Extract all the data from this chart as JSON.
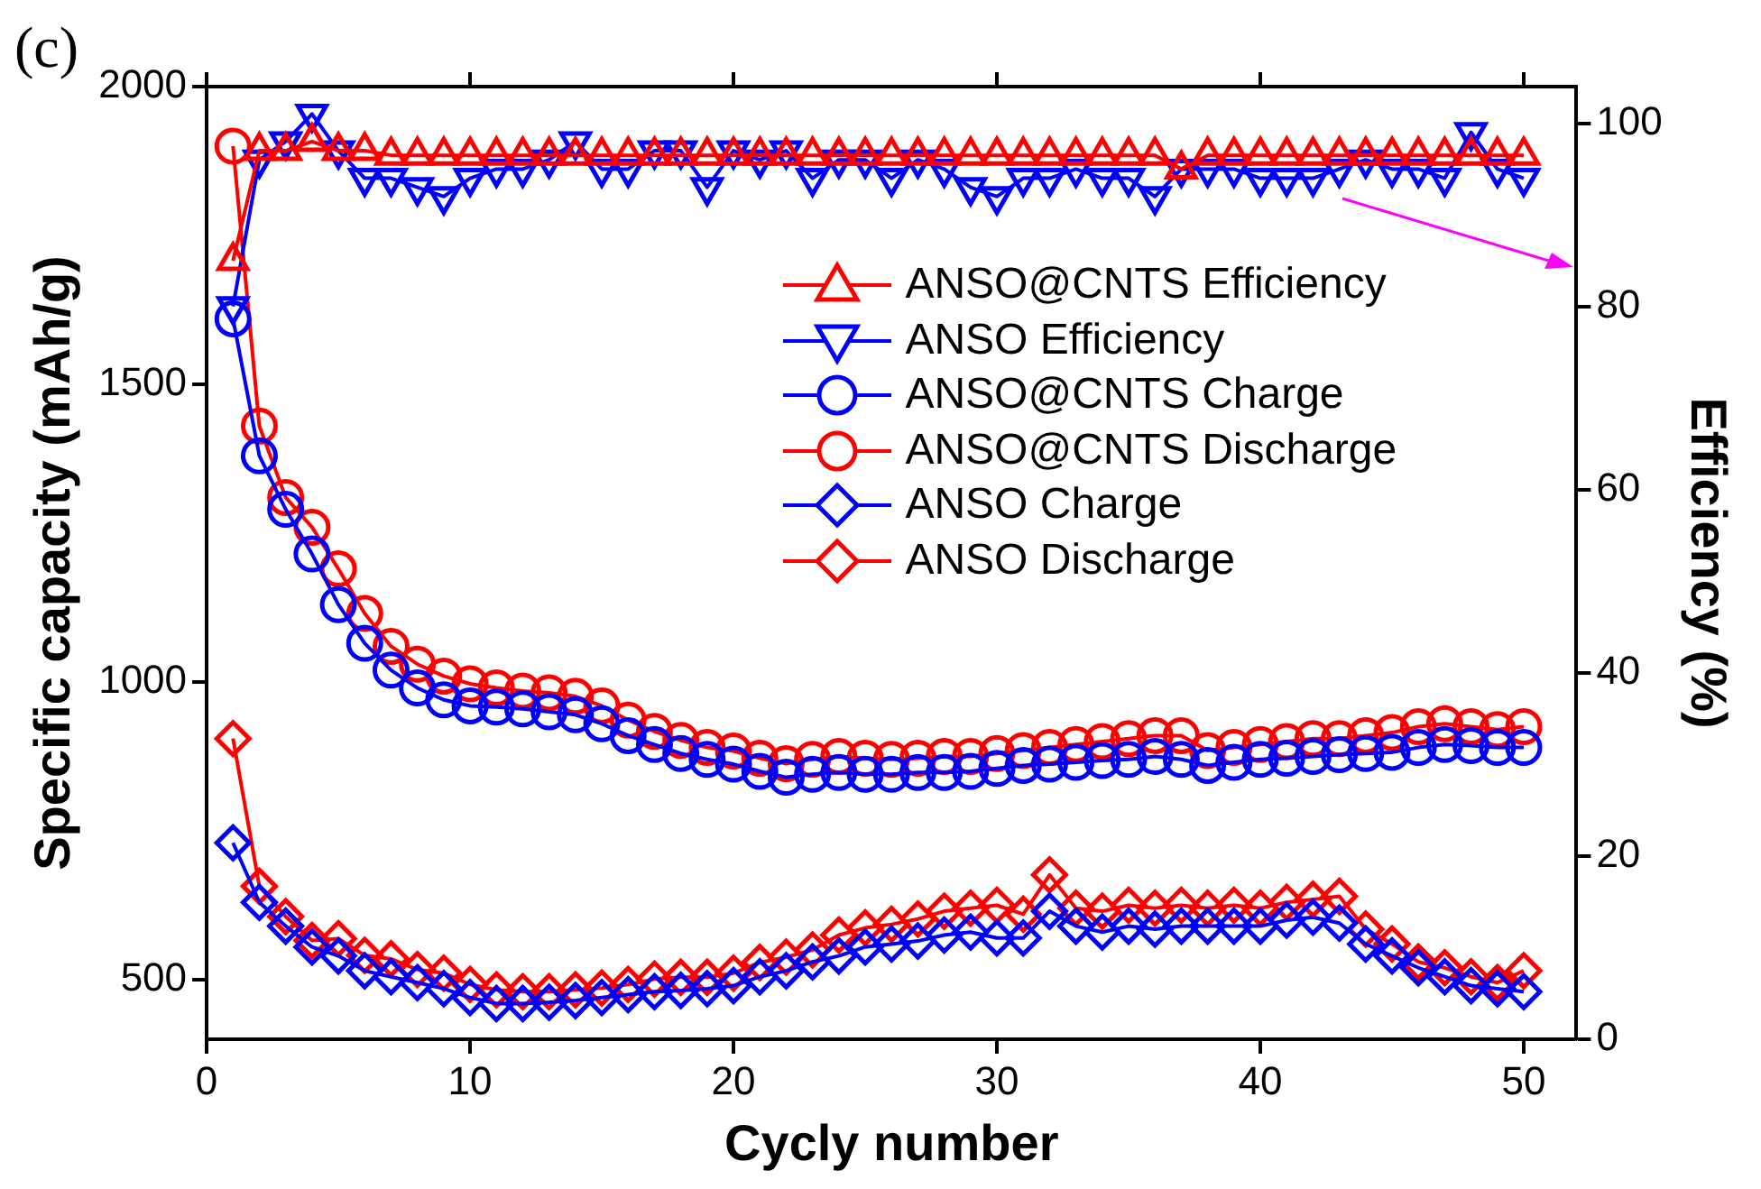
{
  "chart_data": {
    "type": "line",
    "xlabel": "Cycly number",
    "ylabel": "Specific capacity (mAh/g)",
    "y2label": "Efficiency (%)",
    "annotations": [
      "(c)"
    ],
    "x": [
      1,
      2,
      3,
      4,
      5,
      6,
      7,
      8,
      9,
      10,
      11,
      12,
      13,
      14,
      15,
      16,
      17,
      18,
      19,
      20,
      21,
      22,
      23,
      24,
      25,
      26,
      27,
      28,
      29,
      30,
      31,
      32,
      33,
      34,
      35,
      36,
      37,
      38,
      39,
      40,
      41,
      42,
      43,
      44,
      45,
      46,
      47,
      48,
      49,
      50
    ],
    "xlim": [
      0,
      52
    ],
    "xticks": [
      0,
      10,
      20,
      30,
      40,
      50
    ],
    "ylim": [
      400,
      2000
    ],
    "yticks": [
      500,
      1000,
      1500,
      2000
    ],
    "y2lim": [
      0,
      104
    ],
    "y2ticks": [
      0,
      20,
      40,
      60,
      80,
      100
    ],
    "legend": "top right",
    "grid": false,
    "line_style": "solid",
    "series": [
      {
        "name": "ANSO@CNTS Efficiency",
        "color": "#ff0000",
        "axis": "y2",
        "marker": "triangle",
        "values": [
          85,
          97,
          97,
          98,
          97,
          97,
          96.5,
          96.5,
          96.5,
          96.5,
          96.5,
          96.5,
          96.5,
          96.5,
          96.5,
          96.5,
          96.5,
          96.5,
          96.5,
          96.5,
          96.5,
          96.5,
          96.5,
          96.5,
          96.5,
          96.5,
          96.5,
          96.5,
          96.5,
          96.5,
          96.5,
          96.5,
          96.5,
          96.5,
          96.5,
          96.5,
          95,
          96.5,
          96.5,
          96.5,
          96.5,
          96.5,
          96.5,
          96.5,
          96.5,
          96.5,
          96.5,
          96.5,
          96.5,
          96.5
        ]
      },
      {
        "name": "ANSO Efficiency",
        "color": "#0000ff",
        "axis": "y2",
        "marker": "triangle-down",
        "values": [
          80,
          96,
          98,
          101,
          97,
          94,
          94,
          93,
          92,
          94,
          95,
          95,
          96,
          98,
          95,
          95,
          97,
          97,
          93,
          97,
          96,
          97,
          94,
          96,
          96,
          94,
          96,
          95,
          93,
          92,
          94,
          94,
          95,
          94,
          94,
          92,
          95,
          95,
          95,
          94,
          94,
          94,
          95,
          96,
          95,
          95,
          94,
          99,
          95,
          94
        ]
      },
      {
        "name": "ANSO@CNTS Charge",
        "color": "#0000ff",
        "marker": "circle",
        "values": [
          1610,
          1380,
          1290,
          1215,
          1130,
          1065,
          1020,
          990,
          970,
          960,
          958,
          955,
          950,
          945,
          930,
          910,
          895,
          880,
          870,
          862,
          850,
          840,
          845,
          848,
          845,
          845,
          848,
          848,
          850,
          855,
          860,
          862,
          865,
          868,
          870,
          875,
          870,
          860,
          865,
          870,
          872,
          875,
          878,
          880,
          882,
          890,
          895,
          893,
          890,
          890
        ]
      },
      {
        "name": "ANSO@CNTS Discharge",
        "color": "#ff0000",
        "marker": "circle",
        "values": [
          1900,
          1430,
          1310,
          1260,
          1190,
          1115,
          1060,
          1030,
          1010,
          997,
          990,
          985,
          982,
          976,
          960,
          936,
          917,
          902,
          890,
          884,
          872,
          863,
          870,
          875,
          872,
          870,
          872,
          875,
          875,
          880,
          885,
          890,
          895,
          900,
          905,
          910,
          910,
          885,
          890,
          895,
          900,
          905,
          905,
          910,
          915,
          925,
          930,
          925,
          920,
          925
        ]
      },
      {
        "name": "ANSO Charge",
        "color": "#0000ff",
        "marker": "diamond",
        "values": [
          730,
          630,
          590,
          555,
          540,
          515,
          505,
          495,
          485,
          470,
          460,
          460,
          462,
          465,
          470,
          475,
          480,
          482,
          485,
          490,
          505,
          515,
          530,
          540,
          555,
          560,
          565,
          575,
          580,
          570,
          570,
          615,
          590,
          580,
          590,
          585,
          590,
          590,
          590,
          590,
          600,
          605,
          595,
          560,
          540,
          520,
          505,
          490,
          485,
          480
        ]
      },
      {
        "name": "ANSO Discharge",
        "color": "#ff0000",
        "marker": "diamond",
        "values": [
          905,
          657,
          606,
          566,
          569,
          541,
          535,
          517,
          511,
          492,
          483,
          480,
          480,
          483,
          486,
          492,
          501,
          504,
          504,
          511,
          529,
          538,
          550,
          575,
          587,
          593,
          602,
          615,
          620,
          625,
          610,
          676,
          620,
          615,
          625,
          620,
          625,
          620,
          625,
          620,
          630,
          635,
          640,
          585,
          560,
          530,
          520,
          505,
          495,
          515
        ]
      }
    ]
  }
}
